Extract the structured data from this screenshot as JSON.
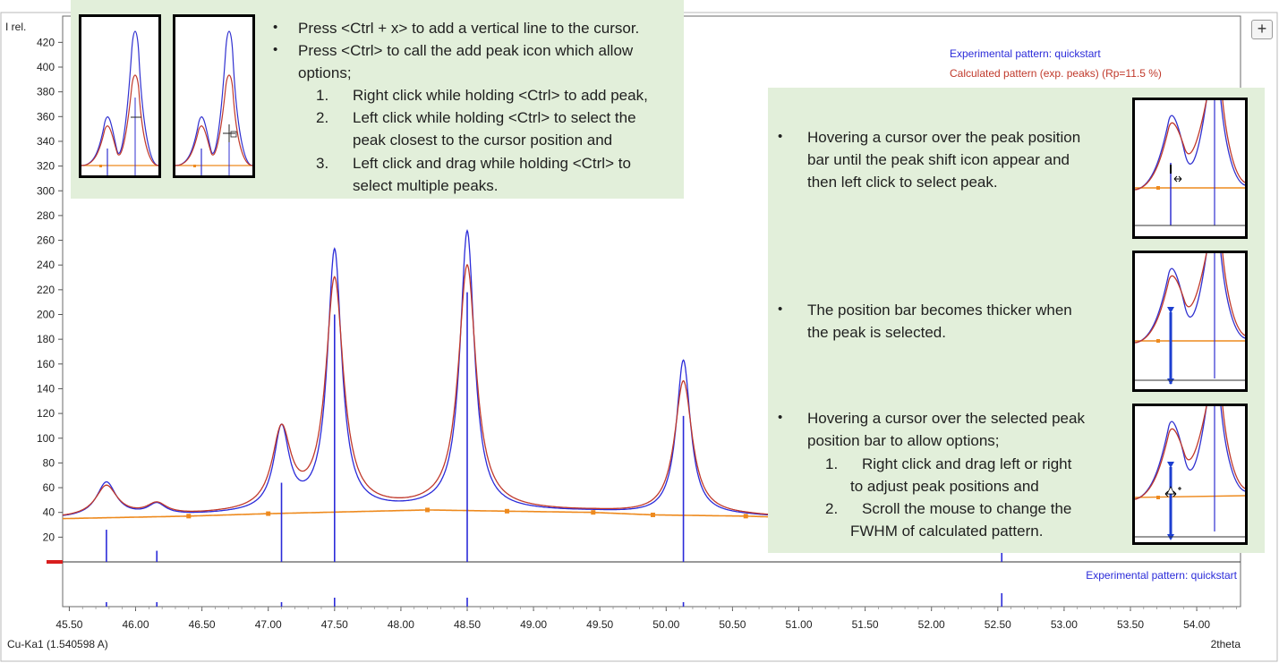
{
  "chart_data": {
    "type": "line",
    "title": "",
    "ylabel": "I rel.",
    "xlabel": "2theta",
    "wavelength_label": "Cu-Ka1 (1.540598 A)",
    "xlim": [
      45.45,
      54.33
    ],
    "ylim": [
      0,
      430
    ],
    "x_ticks": [
      "45.50",
      "46.00",
      "46.50",
      "47.00",
      "47.50",
      "48.00",
      "48.50",
      "49.00",
      "49.50",
      "50.00",
      "50.50",
      "51.00",
      "51.50",
      "52.00",
      "52.50",
      "53.00",
      "53.50",
      "54.00"
    ],
    "y_ticks": [
      "20",
      "40",
      "60",
      "80",
      "100",
      "120",
      "140",
      "160",
      "180",
      "200",
      "220",
      "240",
      "260",
      "280",
      "300",
      "320",
      "340",
      "360",
      "380",
      "400",
      "420"
    ],
    "peaks": [
      {
        "pos": 45.78,
        "exp_height": 28,
        "exp_w": 0.09,
        "calc_height": 25,
        "calc_w": 0.1
      },
      {
        "pos": 46.16,
        "exp_height": 9,
        "exp_w": 0.08,
        "calc_height": 9,
        "calc_w": 0.09
      },
      {
        "pos": 47.1,
        "exp_height": 66,
        "exp_w": 0.07,
        "calc_height": 64,
        "calc_w": 0.085
      },
      {
        "pos": 47.5,
        "exp_height": 210,
        "exp_w": 0.065,
        "calc_height": 186,
        "calc_w": 0.08
      },
      {
        "pos": 48.5,
        "exp_height": 225,
        "exp_w": 0.065,
        "calc_height": 197,
        "calc_w": 0.08
      },
      {
        "pos": 50.13,
        "exp_height": 125,
        "exp_w": 0.065,
        "calc_height": 108,
        "calc_w": 0.08
      }
    ],
    "background_points": [
      [
        45.45,
        35
      ],
      [
        46.4,
        37
      ],
      [
        47.0,
        39
      ],
      [
        48.2,
        42
      ],
      [
        48.8,
        41
      ],
      [
        49.45,
        40
      ],
      [
        49.9,
        38
      ],
      [
        50.6,
        37
      ],
      [
        50.9,
        36
      ]
    ],
    "marker_bars": [
      {
        "pos": 45.78,
        "height": 26
      },
      {
        "pos": 46.16,
        "height": 9
      },
      {
        "pos": 47.1,
        "height": 64
      },
      {
        "pos": 47.5,
        "height": 200
      },
      {
        "pos": 48.5,
        "height": 218
      },
      {
        "pos": 50.13,
        "height": 118
      }
    ],
    "lower_ticks": [
      {
        "pos": 45.78,
        "h": 1
      },
      {
        "pos": 46.16,
        "h": 1
      },
      {
        "pos": 47.1,
        "h": 1
      },
      {
        "pos": 47.5,
        "h": 2
      },
      {
        "pos": 48.5,
        "h": 2
      },
      {
        "pos": 50.13,
        "h": 1
      },
      {
        "pos": 52.53,
        "h": 3
      }
    ],
    "series": [
      {
        "name": "Experimental pattern: quickstart",
        "color": "#2b2bd9"
      },
      {
        "name": "Calculated pattern (exp. peaks) (Rp=11.5 %)",
        "color": "#c0392b"
      }
    ],
    "lower_panel_label": "Experimental pattern: quickstart",
    "background_color": "#ee8a1e"
  },
  "ui": {
    "expand_button_label": "+"
  },
  "callout_top": {
    "bullets": [
      "Press <Ctrl + x> to add a vertical line to the cursor.",
      "Press <Ctrl> to call the add peak icon which allow"
    ],
    "continuation": "options;",
    "numbered": [
      {
        "n": "1.",
        "lines": [
          "Right click while holding <Ctrl> to add peak,"
        ]
      },
      {
        "n": "2.",
        "lines": [
          "Left click while holding <Ctrl> to select the",
          "peak closest to the cursor position and"
        ]
      },
      {
        "n": "3.",
        "lines": [
          "Left click and drag while holding <Ctrl> to",
          "select multiple peaks."
        ]
      }
    ]
  },
  "callout_right": {
    "block1": [
      "Hovering a cursor over the peak position",
      "bar until the peak shift icon appear and",
      "then left click to select peak."
    ],
    "block2": [
      "The position bar becomes thicker when",
      "the peak is selected."
    ],
    "block3": [
      "Hovering a cursor over the selected peak",
      "position bar to allow options;"
    ],
    "block3_numbered": [
      {
        "n": "1.",
        "lines": [
          "Right click and drag left or right",
          "to adjust peak positions and"
        ]
      },
      {
        "n": "2.",
        "lines": [
          "Scroll the mouse to change the",
          "FWHM of calculated pattern."
        ]
      }
    ]
  }
}
